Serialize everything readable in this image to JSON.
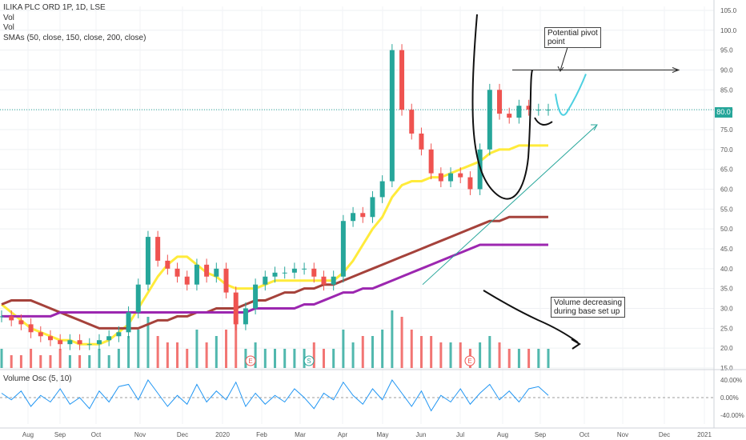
{
  "legend": {
    "title": "ILIKA PLC ORD 1P, 1D, LSE",
    "line2": "Vol",
    "line3": "Vol",
    "line4": "SMAs (50, close, 150, close, 200, close)"
  },
  "osc_label": "Volume Osc (5, 10)",
  "current_price_label": "80.0",
  "annotations": {
    "pivot": [
      "Potential pivot",
      "point"
    ],
    "volume": [
      "Volume decreasing",
      "during base set up"
    ]
  },
  "event_markers": [
    "E",
    "S",
    "E"
  ],
  "colors": {
    "up": "#26a69a",
    "down": "#ef5350",
    "sma50": "#ffeb3b",
    "sma150": "#a5423b",
    "sma200": "#9c27b0",
    "osc": "#2196f3",
    "cyan_projection": "#4dd0e1"
  },
  "chart_data": [
    {
      "type": "line",
      "title": "ILIKA PLC ORD 1P, 1D, LSE",
      "y_ticks": [
        "105.0",
        "100.0",
        "95.0",
        "90.0",
        "85.0",
        "80.0",
        "75.0",
        "70.0",
        "65.0",
        "60.0",
        "55.0",
        "50.0",
        "45.0",
        "40.0",
        "35.0",
        "30.0",
        "25.0",
        "20.0",
        "15.0"
      ],
      "ylim": [
        15,
        106
      ],
      "x_ticks": [
        "Aug",
        "Sep",
        "Oct",
        "Nov",
        "Dec",
        "2020",
        "Feb",
        "Mar",
        "Apr",
        "May",
        "Jun",
        "Jul",
        "Aug",
        "Sep",
        "Oct",
        "Nov",
        "Dec",
        "2021"
      ],
      "x": [
        0,
        5,
        10,
        15,
        20,
        25,
        30,
        35,
        40,
        45,
        50,
        55,
        60,
        65,
        70,
        75,
        80,
        85,
        90,
        95,
        100,
        105,
        110,
        115,
        120,
        125,
        130,
        135,
        140,
        145,
        150,
        155,
        160,
        165,
        170,
        175,
        180,
        185,
        190,
        195,
        200,
        205,
        210,
        215,
        220,
        225,
        230,
        235,
        240,
        245,
        250,
        255,
        260,
        265,
        270,
        275,
        280
      ],
      "series": [
        {
          "name": "Close",
          "values": [
            28,
            27,
            26,
            24,
            23,
            22,
            21,
            22,
            21,
            21,
            22,
            23,
            24,
            29,
            36,
            48,
            42,
            40,
            38,
            36,
            41,
            38,
            40,
            34,
            26,
            30,
            36,
            38,
            39,
            39,
            40,
            40,
            38,
            36,
            38,
            52,
            54,
            53,
            58,
            62,
            95,
            80,
            74,
            70,
            64,
            62,
            64,
            63,
            60,
            70,
            85,
            79,
            78,
            81,
            80,
            80,
            80
          ]
        },
        {
          "name": "SMA 50",
          "values": [
            31,
            29,
            27,
            25,
            24,
            23,
            22,
            22,
            21,
            21,
            21,
            22,
            24,
            26,
            30,
            34,
            38,
            41,
            43,
            43,
            41,
            39,
            38,
            36,
            35,
            35,
            35,
            36,
            37,
            37,
            37,
            37,
            37,
            37,
            37,
            39,
            42,
            46,
            50,
            53,
            58,
            61,
            62,
            62,
            63,
            63,
            64,
            65,
            66,
            67,
            69,
            70,
            70,
            71,
            71,
            71,
            71
          ]
        },
        {
          "name": "SMA 150",
          "values": [
            31,
            32,
            32,
            32,
            31,
            30,
            29,
            28,
            27,
            26,
            25,
            25,
            25,
            25,
            25,
            26,
            27,
            27,
            28,
            28,
            29,
            29,
            30,
            30,
            30,
            31,
            32,
            32,
            33,
            34,
            34,
            35,
            35,
            36,
            36,
            37,
            38,
            39,
            40,
            41,
            42,
            43,
            44,
            45,
            46,
            47,
            48,
            49,
            50,
            51,
            52,
            52,
            53,
            53,
            53,
            53,
            53
          ]
        },
        {
          "name": "SMA 200",
          "values": [
            28,
            28,
            28,
            28,
            28,
            28,
            29,
            29,
            29,
            29,
            29,
            29,
            29,
            29,
            29,
            29,
            29,
            29,
            29,
            29,
            29,
            29,
            29,
            29,
            29,
            29,
            30,
            30,
            30,
            30,
            30,
            31,
            31,
            32,
            33,
            34,
            34,
            35,
            35,
            36,
            37,
            38,
            39,
            40,
            41,
            42,
            43,
            44,
            45,
            46,
            46,
            46,
            46,
            46,
            46,
            46,
            46
          ]
        }
      ],
      "volume": [
        3,
        2,
        2,
        3,
        2,
        2,
        3,
        2,
        2,
        2,
        3,
        2,
        3,
        5,
        6,
        8,
        5,
        4,
        4,
        3,
        6,
        4,
        5,
        6,
        7,
        3,
        4,
        3,
        3,
        3,
        3,
        3,
        4,
        3,
        3,
        6,
        4,
        5,
        5,
        6,
        9,
        8,
        6,
        5,
        5,
        4,
        4,
        4,
        3,
        4,
        5,
        4,
        3,
        3,
        3,
        3,
        3
      ],
      "volume_osc_ticks": [
        "40.00%",
        "0.00%",
        "-40.00%"
      ],
      "volume_osc": [
        10,
        -5,
        15,
        -20,
        5,
        -10,
        20,
        -15,
        0,
        -25,
        15,
        -10,
        25,
        30,
        -5,
        40,
        10,
        -20,
        5,
        -15,
        30,
        -10,
        15,
        -5,
        35,
        -20,
        10,
        -15,
        5,
        -10,
        20,
        0,
        -25,
        10,
        -5,
        35,
        5,
        -15,
        20,
        -5,
        40,
        10,
        -20,
        15,
        -30,
        5,
        -10,
        20,
        -15,
        10,
        30,
        -5,
        15,
        -10,
        20,
        25,
        5
      ]
    }
  ]
}
